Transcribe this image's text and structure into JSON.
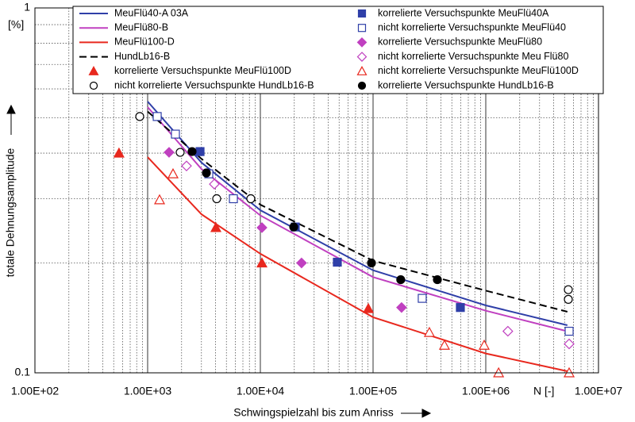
{
  "chart_data": {
    "type": "line",
    "x_label": "Schwingspielzahl bis zum Anriss",
    "y_label": "totale Dehnungsamplitude",
    "y_unit": "[%]",
    "x_unit": "N [-]",
    "x_log": true,
    "y_log": true,
    "grid": true,
    "legend": "top",
    "xlim": [
      100,
      10000000
    ],
    "ylim": [
      0.1,
      1
    ],
    "xticks": [
      {
        "value": 100,
        "label": "1.00E+02"
      },
      {
        "value": 1000,
        "label": "1.00E+03"
      },
      {
        "value": 10000,
        "label": "1.00E+04"
      },
      {
        "value": 100000,
        "label": "1.00E+05"
      },
      {
        "value": 1000000,
        "label": "1.00E+06"
      },
      {
        "value": 10000000,
        "label": "1.00E+07"
      }
    ],
    "yticks": [
      0.1,
      1
    ],
    "series": [
      {
        "name": "MeuFlü40-A 03A",
        "color": "#2f3fa8",
        "style": "line",
        "x": [
          1000,
          3000,
          10000,
          100000,
          1000000,
          5300000
        ],
        "values": [
          0.554,
          0.377,
          0.279,
          0.191,
          0.153,
          0.135
        ]
      },
      {
        "name": "MeuFlü80-B",
        "color": "#c040c0",
        "style": "line",
        "x": [
          1000,
          3000,
          10000,
          100000,
          1000000,
          5300000
        ],
        "values": [
          0.535,
          0.362,
          0.27,
          0.183,
          0.148,
          0.13
        ]
      },
      {
        "name": "MeuFlü100-D",
        "color": "#e8281e",
        "style": "line",
        "x": [
          1000,
          3000,
          10000,
          100000,
          1000000,
          5300000
        ],
        "values": [
          0.39,
          0.272,
          0.212,
          0.142,
          0.113,
          0.101
        ]
      },
      {
        "name": "HundLb16-B",
        "color": "#000000",
        "style": "dashed-line",
        "x": [
          1000,
          3000,
          10000,
          100000,
          1000000,
          5300000
        ],
        "values": [
          0.52,
          0.386,
          0.289,
          0.203,
          0.168,
          0.147
        ]
      },
      {
        "name": "korrelierte Versuchspunkte MeuFlü100D",
        "color": "#e8281e",
        "style": "marker",
        "marker": "triangle",
        "filled": true,
        "x": [
          557,
          4033,
          10330,
          90800
        ],
        "values": [
          0.4,
          0.25,
          0.2,
          0.15
        ]
      },
      {
        "name": "nicht korrelierte Versuchspunkte HundLb16-B",
        "color": "#000000",
        "style": "marker",
        "marker": "circle",
        "filled": false,
        "x": [
          851,
          1944,
          4100,
          8225,
          5400000,
          5400000
        ],
        "values": [
          0.504,
          0.402,
          0.3,
          0.3,
          0.169,
          0.159
        ]
      },
      {
        "name": "korrelierte Versuchspunkte MeuFlü40A",
        "color": "#2f3fa8",
        "style": "marker",
        "marker": "square",
        "filled": true,
        "x": [
          2917,
          20400,
          48200,
          595000
        ],
        "values": [
          0.404,
          0.251,
          0.201,
          0.151
        ]
      },
      {
        "name": "nicht korrelierte Versuchspunkte MeuFlü40",
        "color": "#2f3fa8",
        "style": "marker",
        "marker": "square",
        "filled": false,
        "x": [
          1216,
          1764,
          3487,
          5765,
          273000,
          5490000
        ],
        "values": [
          0.504,
          0.451,
          0.351,
          0.3,
          0.16,
          0.13
        ]
      },
      {
        "name": "korrelierte Versuchspunkte MeuFlü80",
        "color": "#c040c0",
        "style": "marker",
        "marker": "diamond",
        "filled": true,
        "x": [
          1549,
          10330,
          23200,
          179000
        ],
        "values": [
          0.402,
          0.25,
          0.2,
          0.151
        ]
      },
      {
        "name": "nicht korrelierte Versuchspunkte Meu Flü80",
        "color": "#c040c0",
        "style": "marker",
        "marker": "diamond",
        "filled": false,
        "x": [
          2213,
          3906,
          1570000,
          5490000
        ],
        "values": [
          0.369,
          0.329,
          0.13,
          0.12
        ]
      },
      {
        "name": "nicht korrelierte Versuchspunkte MeuFlü100D",
        "color": "#e8281e",
        "style": "marker",
        "marker": "triangle",
        "filled": false,
        "x": [
          1276,
          1680,
          316000,
          430000,
          968000,
          1300000,
          5490000
        ],
        "values": [
          0.298,
          0.351,
          0.129,
          0.119,
          0.119,
          0.1,
          0.1
        ]
      },
      {
        "name": "korrelierte Versuchspunkte HundLb16-B",
        "color": "#000000",
        "style": "marker",
        "marker": "circle",
        "filled": true,
        "x": [
          2479,
          3320,
          19770,
          96800,
          176000,
          372000
        ],
        "values": [
          0.404,
          0.353,
          0.251,
          0.2,
          0.18,
          0.18
        ]
      }
    ]
  }
}
